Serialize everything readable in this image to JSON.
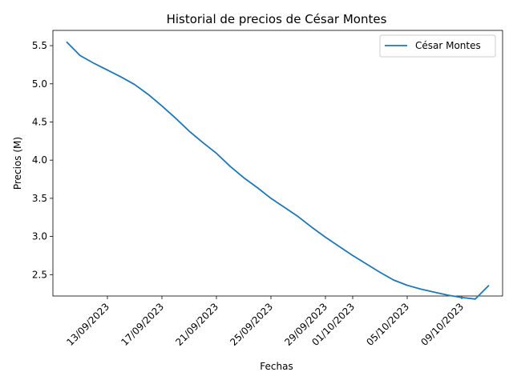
{
  "chart_data": {
    "type": "line",
    "title": "Historial de precios de César Montes",
    "xlabel": "Fechas",
    "ylabel": "Precios (M)",
    "legend_position": "top-right",
    "grid": false,
    "line_color": "#1f77b4",
    "xlim": [
      "2023-09-09",
      "2023-10-12"
    ],
    "ylim": [
      2.22,
      5.7
    ],
    "x_ticks": [
      "2023-09-13",
      "2023-09-17",
      "2023-09-21",
      "2023-09-25",
      "2023-09-29",
      "2023-10-01",
      "2023-10-05",
      "2023-10-09"
    ],
    "x_tick_labels": [
      "13/09/2023",
      "17/09/2023",
      "21/09/2023",
      "25/09/2023",
      "29/09/2023",
      "01/10/2023",
      "05/10/2023",
      "09/10/2023"
    ],
    "y_ticks": [
      2.5,
      3.0,
      3.5,
      4.0,
      4.5,
      5.0,
      5.5
    ],
    "y_tick_labels": [
      "2.5",
      "3.0",
      "3.5",
      "4.0",
      "4.5",
      "5.0",
      "5.5"
    ],
    "series": [
      {
        "name": "César Montes",
        "x": [
          "2023-09-10",
          "2023-09-11",
          "2023-09-12",
          "2023-09-13",
          "2023-09-14",
          "2023-09-15",
          "2023-09-16",
          "2023-09-17",
          "2023-09-18",
          "2023-09-19",
          "2023-09-20",
          "2023-09-21",
          "2023-09-22",
          "2023-09-23",
          "2023-09-24",
          "2023-09-25",
          "2023-09-26",
          "2023-09-27",
          "2023-09-28",
          "2023-09-29",
          "2023-09-30",
          "2023-10-01",
          "2023-10-02",
          "2023-10-03",
          "2023-10-04",
          "2023-10-05",
          "2023-10-06",
          "2023-10-07",
          "2023-10-08",
          "2023-10-09",
          "2023-10-10",
          "2023-10-11"
        ],
        "values": [
          5.55,
          5.37,
          5.27,
          5.18,
          5.09,
          4.99,
          4.86,
          4.71,
          4.55,
          4.38,
          4.23,
          4.09,
          3.92,
          3.77,
          3.64,
          3.5,
          3.38,
          3.26,
          3.12,
          2.99,
          2.87,
          2.75,
          2.64,
          2.53,
          2.43,
          2.36,
          2.31,
          2.27,
          2.23,
          2.2,
          2.18,
          2.36
        ]
      }
    ]
  }
}
